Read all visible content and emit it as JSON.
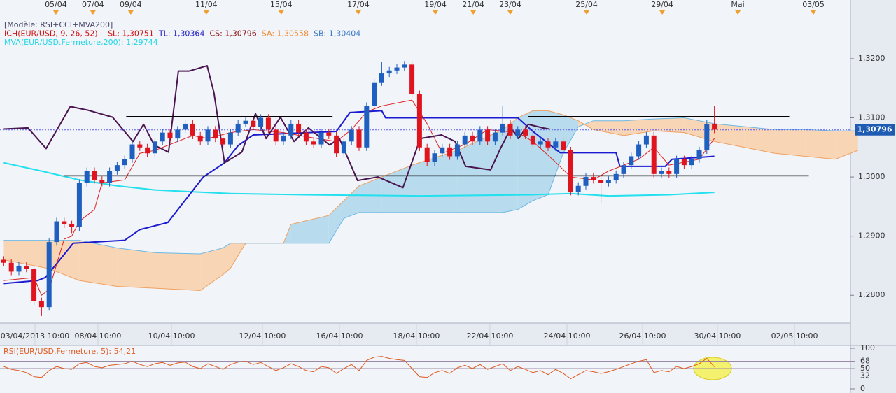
{
  "chart_data": [
    {
      "type": "candlestick",
      "legend": [
        [
          {
            "text": "[Modèle: RSI+CCI+MVA200]",
            "color": "#4a4a6a"
          }
        ],
        [
          {
            "text": "ICH(EUR/USD, 9, 26, 52) -",
            "color": "#d01010"
          },
          {
            "text": "SL: 1,30751",
            "color": "#d01010"
          },
          {
            "text": "TL: 1,30364",
            "color": "#1a1ac0"
          },
          {
            "text": "CS: 1,30796",
            "color": "#8a1010"
          },
          {
            "text": "SA: 1,30558",
            "color": "#f08a30"
          },
          {
            "text": "SB: 1,30404",
            "color": "#3a78c8"
          }
        ],
        [
          {
            "text": "MVA(EUR/USD.Fermeture,200): 1,29744",
            "color": "#20d8e8"
          }
        ]
      ],
      "up_color": "#1f5fbf",
      "down_color": "#e0141e",
      "x": [
        0,
        1,
        2,
        3,
        4,
        5,
        6,
        7,
        8,
        9,
        10,
        11,
        12,
        13,
        14,
        15,
        16,
        17,
        18,
        19,
        20,
        21,
        22,
        23,
        24,
        25,
        26,
        27,
        28,
        29,
        30,
        31,
        32,
        33,
        34,
        35,
        36,
        37,
        38,
        39,
        40,
        41,
        42,
        43,
        44,
        45,
        46,
        47,
        48,
        49,
        50,
        51,
        52,
        53,
        54,
        55,
        56,
        57,
        58,
        59,
        60,
        61,
        62,
        63,
        64,
        65,
        66,
        67,
        68,
        69,
        70,
        71,
        72,
        73,
        74,
        75,
        76,
        77,
        78,
        79,
        80,
        81,
        82,
        83,
        84,
        85,
        86,
        87,
        88,
        89,
        90,
        91,
        92,
        93,
        94
      ],
      "open": [
        1.286,
        1.2855,
        1.284,
        1.285,
        1.2845,
        1.279,
        1.278,
        1.289,
        1.2925,
        1.292,
        1.2915,
        1.299,
        1.301,
        1.2995,
        1.299,
        1.301,
        1.302,
        1.303,
        1.3055,
        1.305,
        1.304,
        1.306,
        1.3075,
        1.3065,
        1.308,
        1.309,
        1.307,
        1.306,
        1.308,
        1.3065,
        1.3055,
        1.3075,
        1.309,
        1.3095,
        1.3085,
        1.31,
        1.308,
        1.306,
        1.307,
        1.309,
        1.3075,
        1.306,
        1.3055,
        1.3075,
        1.307,
        1.304,
        1.306,
        1.308,
        1.305,
        1.312,
        1.316,
        1.3175,
        1.318,
        1.3185,
        1.319,
        1.314,
        1.305,
        1.3025,
        1.304,
        1.305,
        1.3035,
        1.3055,
        1.307,
        1.306,
        1.308,
        1.306,
        1.3075,
        1.309,
        1.307,
        1.308,
        1.307,
        1.3055,
        1.306,
        1.305,
        1.306,
        1.3045,
        1.2975,
        1.2985,
        1.3,
        1.2995,
        1.299,
        1.2995,
        1.3005,
        1.302,
        1.3035,
        1.3055,
        1.307,
        1.3005,
        1.301,
        1.3005,
        1.303,
        1.302,
        1.303,
        1.3045,
        1.309
      ],
      "high": [
        1.2866,
        1.2861,
        1.2856,
        1.2856,
        1.2851,
        1.2796,
        1.2896,
        1.2931,
        1.2931,
        1.2926,
        1.2996,
        1.3016,
        1.3016,
        1.3001,
        1.3016,
        1.3026,
        1.3036,
        1.3061,
        1.3061,
        1.3056,
        1.3066,
        1.3081,
        1.3081,
        1.3086,
        1.3096,
        1.3096,
        1.3076,
        1.3086,
        1.3086,
        1.3071,
        1.3081,
        1.3096,
        1.3101,
        1.3101,
        1.3106,
        1.3106,
        1.3086,
        1.3076,
        1.3096,
        1.3096,
        1.3081,
        1.3066,
        1.3081,
        1.3081,
        1.3076,
        1.3066,
        1.3086,
        1.3086,
        1.3126,
        1.3166,
        1.3195,
        1.3186,
        1.3191,
        1.3196,
        1.3196,
        1.3146,
        1.3056,
        1.3046,
        1.3056,
        1.3056,
        1.3061,
        1.3076,
        1.3076,
        1.3086,
        1.3086,
        1.3081,
        1.312,
        1.3096,
        1.3086,
        1.3086,
        1.3076,
        1.3066,
        1.3066,
        1.3066,
        1.3066,
        1.3051,
        1.2991,
        1.3006,
        1.3006,
        1.3001,
        1.3001,
        1.3011,
        1.3026,
        1.3041,
        1.3061,
        1.3076,
        1.3076,
        1.3016,
        1.3016,
        1.3036,
        1.3036,
        1.3036,
        1.3051,
        1.3096,
        1.312
      ],
      "low": [
        1.2849,
        1.2834,
        1.2834,
        1.2839,
        1.2784,
        1.2765,
        1.2774,
        1.2884,
        1.2914,
        1.2905,
        1.2909,
        1.2984,
        1.2989,
        1.2984,
        1.2984,
        1.3004,
        1.3014,
        1.3024,
        1.3044,
        1.3034,
        1.3034,
        1.3054,
        1.3059,
        1.3059,
        1.3074,
        1.3064,
        1.3054,
        1.3054,
        1.3059,
        1.3049,
        1.3049,
        1.3069,
        1.3084,
        1.3079,
        1.3079,
        1.3074,
        1.3054,
        1.3054,
        1.3064,
        1.3069,
        1.3054,
        1.3049,
        1.3049,
        1.3064,
        1.3034,
        1.3034,
        1.3054,
        1.3044,
        1.3044,
        1.3114,
        1.3154,
        1.3169,
        1.3174,
        1.3179,
        1.3134,
        1.3044,
        1.3019,
        1.3019,
        1.3034,
        1.3029,
        1.3029,
        1.3049,
        1.3054,
        1.3054,
        1.3054,
        1.3054,
        1.3069,
        1.3064,
        1.3064,
        1.3064,
        1.3049,
        1.3049,
        1.3044,
        1.3044,
        1.3039,
        1.2969,
        1.2969,
        1.2979,
        1.2989,
        1.2955,
        1.2984,
        1.2989,
        1.2999,
        1.3014,
        1.3029,
        1.3049,
        1.2999,
        1.2999,
        1.2999,
        1.2999,
        1.3014,
        1.3014,
        1.3024,
        1.3039,
        1.3074
      ],
      "close": [
        1.2855,
        1.284,
        1.285,
        1.2845,
        1.279,
        1.278,
        1.289,
        1.2925,
        1.292,
        1.2915,
        1.299,
        1.301,
        1.2995,
        1.299,
        1.301,
        1.302,
        1.303,
        1.3055,
        1.305,
        1.304,
        1.306,
        1.3075,
        1.3065,
        1.308,
        1.309,
        1.307,
        1.306,
        1.308,
        1.3065,
        1.3055,
        1.3075,
        1.309,
        1.3095,
        1.3085,
        1.31,
        1.308,
        1.306,
        1.307,
        1.309,
        1.3075,
        1.306,
        1.3055,
        1.3075,
        1.307,
        1.304,
        1.306,
        1.308,
        1.305,
        1.312,
        1.316,
        1.3175,
        1.318,
        1.3185,
        1.319,
        1.314,
        1.305,
        1.3025,
        1.304,
        1.305,
        1.3035,
        1.3055,
        1.307,
        1.306,
        1.308,
        1.306,
        1.3075,
        1.309,
        1.307,
        1.308,
        1.307,
        1.3055,
        1.306,
        1.305,
        1.306,
        1.3045,
        1.2975,
        1.2985,
        1.3,
        1.2995,
        1.299,
        1.2995,
        1.3005,
        1.302,
        1.3035,
        1.3055,
        1.307,
        1.3005,
        1.301,
        1.3005,
        1.303,
        1.302,
        1.303,
        1.3045,
        1.309,
        1.308
      ],
      "cloud": {
        "sa_color": "#f0a060",
        "sb_color": "#6cb8e6",
        "fill_sa_above": "#b8dced",
        "fill_sb_above": "#f8d5b4",
        "x": [
          0,
          6,
          10,
          15,
          20,
          26,
          29,
          30,
          32,
          37,
          38,
          43,
          45,
          47,
          50,
          54,
          60,
          66,
          68,
          70,
          72,
          74,
          76,
          78,
          82,
          86,
          90,
          94,
          98,
          102,
          106,
          110,
          113
        ],
        "sa": [
          1.286,
          1.2845,
          1.2825,
          1.2815,
          1.2812,
          1.2808,
          1.2835,
          1.2846,
          1.2888,
          1.2888,
          1.292,
          1.2935,
          1.296,
          1.2985,
          1.3,
          1.302,
          1.3045,
          1.308,
          1.31,
          1.3112,
          1.3112,
          1.3105,
          1.3095,
          1.308,
          1.307,
          1.3078,
          1.3075,
          1.306,
          1.305,
          1.304,
          1.3035,
          1.303,
          1.3045
        ],
        "sb": [
          1.2893,
          1.2893,
          1.2893,
          1.288,
          1.2872,
          1.287,
          1.288,
          1.2888,
          1.2888,
          1.2888,
          1.2888,
          1.2888,
          1.293,
          1.294,
          1.294,
          1.294,
          1.294,
          1.294,
          1.2945,
          1.296,
          1.297,
          1.304,
          1.3085,
          1.3095,
          1.3095,
          1.3098,
          1.31,
          1.309,
          1.3085,
          1.308,
          1.308,
          1.3078,
          1.3078
        ]
      },
      "series": [
        {
          "color": "#22e0ee",
          "width": 2,
          "x": [
            0,
            5,
            10,
            15,
            20,
            30,
            40,
            55,
            70,
            75,
            80,
            88,
            94
          ],
          "values": [
            1.3024,
            1.301,
            1.2995,
            1.2985,
            1.2978,
            1.2972,
            1.297,
            1.2968,
            1.297,
            1.2972,
            1.2968,
            1.297,
            1.2974
          ]
        },
        {
          "color": "#1a1ad0",
          "width": 2,
          "x": [
            0,
            4.5,
            5.5,
            9.2,
            16,
            18,
            21.7,
            26.4,
            29.2,
            31,
            33,
            44,
            45.8,
            50,
            50.5,
            68,
            70,
            73.6,
            81,
            81.5,
            87.5,
            88.4,
            94
          ],
          "values": [
            1.282,
            1.2825,
            1.283,
            1.2888,
            1.2893,
            1.2911,
            1.2923,
            1.3,
            1.3024,
            1.3053,
            1.3071,
            1.3077,
            1.3109,
            1.3112,
            1.31,
            1.31,
            1.3077,
            1.3041,
            1.3041,
            1.3018,
            1.3018,
            1.303,
            1.3035
          ]
        },
        {
          "color": "#e02020",
          "width": 1,
          "x": [
            0,
            4,
            5,
            6,
            8,
            9,
            10,
            12,
            13,
            16,
            18,
            20,
            22,
            25,
            27,
            30,
            33,
            37,
            40,
            44,
            46,
            48,
            50,
            54,
            56,
            58,
            61,
            64,
            68,
            70,
            73,
            75,
            78,
            80,
            84,
            86,
            88,
            92,
            94
          ],
          "values": [
            1.2825,
            1.283,
            1.28,
            1.281,
            1.2895,
            1.29,
            1.2925,
            1.2945,
            1.299,
            1.2995,
            1.304,
            1.3045,
            1.3055,
            1.307,
            1.3065,
            1.3075,
            1.308,
            1.3075,
            1.3068,
            1.306,
            1.308,
            1.311,
            1.312,
            1.313,
            1.309,
            1.304,
            1.3055,
            1.308,
            1.3075,
            1.306,
            1.3025,
            1.3,
            1.2995,
            1.301,
            1.303,
            1.305,
            1.302,
            1.303,
            1.3065
          ]
        },
        {
          "color": "#4a1550",
          "width": 2,
          "x": [
            0,
            3.2,
            5.6,
            8.8,
            11.1,
            14.4,
            17.1,
            18.5,
            19.9,
            21.8,
            23.1,
            24.5,
            26.9,
            27.8,
            29.2,
            31.5,
            33.3,
            34.7,
            36.6,
            38.4,
            40.3,
            43.1,
            44.4,
            46.8,
            49.5,
            52.8,
            55.1,
            57.9,
            59.7,
            61.1,
            64.4,
            65.7,
            67.1,
            68.1,
            69.4,
            71.3,
            72.2
          ],
          "values": [
            1.3081,
            1.3083,
            1.3048,
            1.3119,
            1.3113,
            1.3101,
            1.306,
            1.3089,
            1.3054,
            1.3042,
            1.3179,
            1.3179,
            1.3188,
            1.3143,
            1.3024,
            1.3042,
            1.3107,
            1.3065,
            1.3101,
            1.306,
            1.3083,
            1.3054,
            1.3065,
            1.2994,
            1.3,
            1.2982,
            1.3065,
            1.3071,
            1.306,
            1.3018,
            1.3012,
            1.3048,
            1.3083,
            1.3065,
            1.3089,
            1.3083,
            1.3081
          ]
        }
      ],
      "hlines": [
        {
          "x": [
            16.2,
            43.5
          ],
          "value": 1.3102
        },
        {
          "x": [
            7.9,
            106.5
          ],
          "value": 1.3002
        },
        {
          "x": [
            69.4,
            103.9
          ],
          "value": 1.3102
        }
      ],
      "last_price": {
        "value": 1.30796,
        "label": "1,30796"
      },
      "xlim": [
        -0.5,
        112
      ],
      "ylim": [
        1.2753,
        1.3285
      ],
      "yticks": [
        {
          "value": 1.28,
          "label": "1,2800"
        },
        {
          "value": 1.29,
          "label": "1,2900"
        },
        {
          "value": 1.3,
          "label": "1,3000"
        },
        {
          "value": 1.31,
          "label": "1,3100"
        },
        {
          "value": 1.32,
          "label": "1,3200"
        }
      ],
      "xticks": [
        {
          "value": 4.13,
          "label": "03/04/2013 10:00"
        },
        {
          "value": 12.46,
          "label": "08/04 10:00"
        },
        {
          "value": 22.19,
          "label": "10/04 10:00"
        },
        {
          "value": 34.22,
          "label": "12/04 10:00"
        },
        {
          "value": 44.41,
          "label": "16/04 10:00"
        },
        {
          "value": 54.59,
          "label": "18/04 10:00"
        },
        {
          "value": 64.31,
          "label": "22/04 10:00"
        },
        {
          "value": 74.5,
          "label": "24/04 10:00"
        },
        {
          "value": 84.5,
          "label": "26/04 10:00"
        },
        {
          "value": 94.4,
          "label": "30/04 10:00"
        },
        {
          "value": 104.6,
          "label": "02/05 10:00"
        }
      ],
      "x2ticks": [
        {
          "value": 6.9,
          "label": "05/04"
        },
        {
          "value": 11.8,
          "label": "07/04"
        },
        {
          "value": 16.8,
          "label": "09/04"
        },
        {
          "value": 26.8,
          "label": "11/04"
        },
        {
          "value": 36.7,
          "label": "15/04"
        },
        {
          "value": 46.9,
          "label": "17/04"
        },
        {
          "value": 57.1,
          "label": "19/04"
        },
        {
          "value": 62.1,
          "label": "21/04"
        },
        {
          "value": 67.0,
          "label": "23/04"
        },
        {
          "value": 77.1,
          "label": "25/04"
        },
        {
          "value": 87.1,
          "label": "29/04"
        },
        {
          "value": 97.1,
          "label": "Mai"
        },
        {
          "value": 107.1,
          "label": "03/05"
        }
      ]
    },
    {
      "type": "line",
      "title": "RSI(EUR/USD.Fermeture, 5): 54,21",
      "color": "#e05a20",
      "values": [
        55,
        48,
        45,
        40,
        30,
        28,
        45,
        55,
        50,
        48,
        62,
        65,
        55,
        52,
        58,
        60,
        62,
        68,
        60,
        55,
        62,
        65,
        58,
        64,
        66,
        55,
        50,
        62,
        55,
        48,
        60,
        66,
        68,
        60,
        65,
        55,
        45,
        52,
        62,
        55,
        45,
        42,
        55,
        52,
        38,
        50,
        60,
        45,
        70,
        78,
        80,
        75,
        72,
        70,
        50,
        30,
        28,
        40,
        45,
        38,
        52,
        58,
        50,
        60,
        48,
        55,
        62,
        45,
        55,
        48,
        40,
        45,
        35,
        48,
        38,
        25,
        35,
        45,
        42,
        38,
        42,
        48,
        55,
        62,
        68,
        72,
        40,
        45,
        42,
        55,
        50,
        55,
        62,
        75,
        54.21
      ],
      "ylim": [
        0,
        100
      ],
      "yticks": [
        0,
        32,
        50,
        68,
        100
      ]
    }
  ]
}
